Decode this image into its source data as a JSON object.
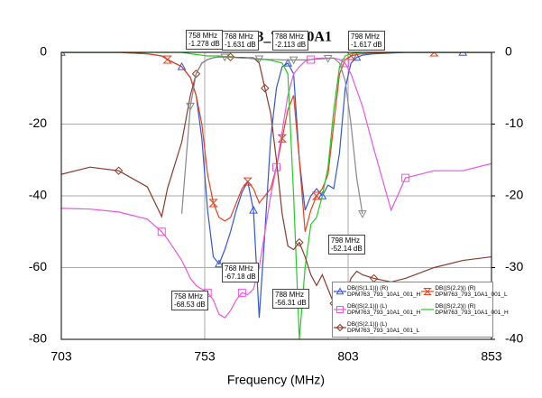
{
  "chart_data": {
    "type": "line",
    "title": "DPM763_793_10A1",
    "x_label": "Frequency (MHz)",
    "x": [
      703,
      713,
      723,
      733,
      738,
      740,
      745,
      748,
      750,
      752,
      754,
      756,
      758,
      760,
      762,
      764,
      766,
      768,
      770,
      772,
      774,
      776,
      778,
      780,
      782,
      784,
      786,
      788,
      790,
      792,
      794,
      796,
      798,
      800,
      802,
      804,
      806,
      808,
      812,
      818,
      823,
      833,
      843,
      853
    ],
    "xlim": [
      703,
      853
    ],
    "xticks": [
      703,
      753,
      803,
      853
    ],
    "ylim": [
      -80,
      0
    ],
    "yticks": [
      0,
      -20,
      -40,
      -60,
      -80
    ],
    "y2lim": [
      -40,
      0
    ],
    "y2ticks": [
      0,
      -10,
      -20,
      -30,
      -40
    ],
    "grid": true,
    "series": [
      {
        "name": "DB(|S(1,1)|) (R)\nDPM763_793_10A1_001_H",
        "color": "#3355dd",
        "marker": "triangle",
        "axis": "y2",
        "values": [
          0,
          0,
          0,
          -0.2,
          -0.5,
          -1,
          -2,
          -3.5,
          -6,
          -12,
          -22,
          -28.5,
          -29.5,
          -27.5,
          -25,
          -22,
          -19.5,
          -18,
          -22,
          -37,
          -25,
          -12,
          -5,
          -2,
          -1.5,
          -3,
          -15,
          -22,
          -20,
          -19,
          -20,
          -18.5,
          -19,
          -14,
          -5,
          -1.5,
          -0.7,
          -0.4,
          -0.2,
          -0.1,
          0,
          0,
          0,
          0
        ]
      },
      {
        "name": "DB(|S(2,2)|) (R)\nDPM763_793_10A1_001_L",
        "color": "#e8401c",
        "marker": "hourglass",
        "axis": "y2",
        "values": [
          0,
          0,
          0,
          -0.2,
          -0.5,
          -1,
          -2,
          -3.5,
          -6,
          -10,
          -17,
          -21,
          -23,
          -23.5,
          -23,
          -21,
          -19,
          -18,
          -19,
          -21,
          -20,
          -19,
          -16,
          -12,
          -8,
          -6,
          -15,
          -25,
          -22,
          -20,
          -19,
          -17,
          -10,
          -3,
          -1,
          -0.5,
          -0.3,
          -0.2,
          -0.1,
          0,
          0,
          0,
          0,
          0
        ]
      },
      {
        "name": "DB(|S(2,1)|) (L)\nDPM763_793_10A1_001_H",
        "color": "#ee55dd",
        "marker": "square",
        "values": [
          -43.5,
          -43.7,
          -44.5,
          -46.5,
          -50,
          -52,
          -58,
          -63,
          -65,
          -66,
          -67,
          -69,
          -73,
          -74,
          -72,
          -69,
          -67,
          -67.5,
          -66,
          -60,
          -50,
          -40,
          -32,
          -22,
          -12,
          -6,
          -4,
          -2.5,
          -2,
          -1.7,
          -1.6,
          -1.6,
          -1.6,
          -2,
          -3,
          -6,
          -10.5,
          -15,
          -27,
          -44,
          -35,
          -33,
          -33,
          -31
        ]
      },
      {
        "name": "DB(|S(2,2)|) (R)\nDPM763_793_10A1_001_H",
        "color": "#22cc22",
        "marker": "none",
        "axis": "y2",
        "values": [
          0,
          0,
          0,
          0,
          0,
          0,
          0,
          -0.2,
          -0.3,
          -0.4,
          -0.5,
          -0.5,
          -0.5,
          -0.6,
          -0.6,
          -0.7,
          -0.7,
          -0.8,
          -0.9,
          -1,
          -1,
          -1.1,
          -1.3,
          -1.5,
          -3,
          -20,
          -40,
          -30,
          -24,
          -23,
          -20,
          -16,
          -8,
          -2,
          -0.5,
          -0.2,
          -0.1,
          0,
          0,
          0,
          0,
          0,
          0,
          0
        ]
      },
      {
        "name": "DB(|S(2,1)|) (L)\nDPM763_793_10A1_001_L",
        "color": "#8b3a2a",
        "marker": "diamond",
        "values": [
          -34,
          -32,
          -33,
          -37.5,
          -45.8,
          -38,
          -25,
          -12,
          -6,
          -3,
          -2,
          -1.5,
          -1.3,
          -1.3,
          -1.3,
          -1.4,
          -1.4,
          -1.5,
          -1.5,
          -3,
          -10,
          -17,
          -30,
          -45,
          -54,
          -55,
          -53,
          -57,
          -62,
          -65,
          -62,
          -66,
          -70,
          -75,
          -68,
          -63,
          -61,
          -62,
          -63,
          -64,
          -63,
          -60,
          -58,
          -57
        ]
      },
      {
        "color": "#888888",
        "marker": "triangle-down",
        "values": [
          null,
          null,
          null,
          null,
          null,
          null,
          -45,
          -15,
          -6,
          -3,
          -2,
          -1.5,
          -1.3,
          -1.3,
          -1.4,
          -1.5,
          -1.6,
          -1.6,
          -1.7,
          -1.8,
          -1.9,
          -2,
          -2,
          -2.1,
          -2.1,
          -2.1,
          -2.1,
          -2.1,
          -2,
          -1.9,
          -1.8,
          -1.7,
          -1.6,
          -3,
          -8,
          -20,
          -35,
          -45,
          null,
          null,
          null,
          null,
          null,
          null
        ]
      }
    ],
    "annotations": [
      "758 MHz\n-1.278 dB",
      "768 MHz\n-1.631 dB",
      "788 MHz\n-2.113 dB",
      "798 MHz\n-1.617 dB",
      "768 MHz\n-67.18 dB",
      "788 MHz\n-56.31 dB",
      "798 MHz\n-52.14 dB",
      "758 MHz\n-68.53 dB"
    ]
  }
}
